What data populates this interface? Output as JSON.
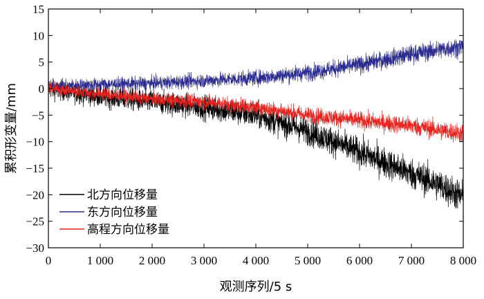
{
  "chart_data": {
    "type": "line",
    "xlabel": "观测序列/5 s",
    "ylabel": "累积形变量/mm",
    "xlim": [
      0,
      8000
    ],
    "ylim": [
      -30,
      15
    ],
    "x_ticks": [
      0,
      1000,
      2000,
      3000,
      4000,
      5000,
      6000,
      7000,
      8000
    ],
    "x_tick_labels": [
      "0",
      "1 000",
      "2 000",
      "3 000",
      "4 000",
      "5 000",
      "6 000",
      "7 000",
      "8 000"
    ],
    "y_ticks": [
      -30,
      -25,
      -20,
      -15,
      -10,
      -5,
      0,
      5,
      10,
      15
    ],
    "y_tick_labels": [
      "−30",
      "−25",
      "−20",
      "−15",
      "−10",
      "−5",
      "0",
      "5",
      "10",
      "15"
    ],
    "grid": false,
    "legend_position": "bottom-left",
    "series": [
      {
        "name": "北方向位移量",
        "color": "#000000",
        "noise_amplitude": 2.2,
        "trend": [
          [
            0,
            0
          ],
          [
            1000,
            -1.5
          ],
          [
            2000,
            -2.5
          ],
          [
            3000,
            -3.5
          ],
          [
            4000,
            -5
          ],
          [
            4500,
            -6.5
          ],
          [
            5000,
            -8
          ],
          [
            5500,
            -10
          ],
          [
            6000,
            -12
          ],
          [
            6500,
            -14
          ],
          [
            7000,
            -16
          ],
          [
            7500,
            -18
          ],
          [
            8000,
            -20.5
          ]
        ]
      },
      {
        "name": "东方向位移量",
        "color": "#2b2a8f",
        "noise_amplitude": 1.3,
        "trend": [
          [
            0,
            0.5
          ],
          [
            1000,
            0.8
          ],
          [
            2000,
            1
          ],
          [
            3000,
            1.5
          ],
          [
            4000,
            2
          ],
          [
            5000,
            3
          ],
          [
            6000,
            4.5
          ],
          [
            7000,
            6.5
          ],
          [
            8000,
            8
          ]
        ]
      },
      {
        "name": "高程方向位移量",
        "color": "#e5231f",
        "noise_amplitude": 1.3,
        "trend": [
          [
            0,
            0
          ],
          [
            1000,
            -1
          ],
          [
            2000,
            -2
          ],
          [
            3000,
            -2.5
          ],
          [
            4000,
            -3.5
          ],
          [
            5000,
            -5
          ],
          [
            6000,
            -6
          ],
          [
            7000,
            -7
          ],
          [
            8000,
            -8.5
          ]
        ]
      }
    ]
  }
}
